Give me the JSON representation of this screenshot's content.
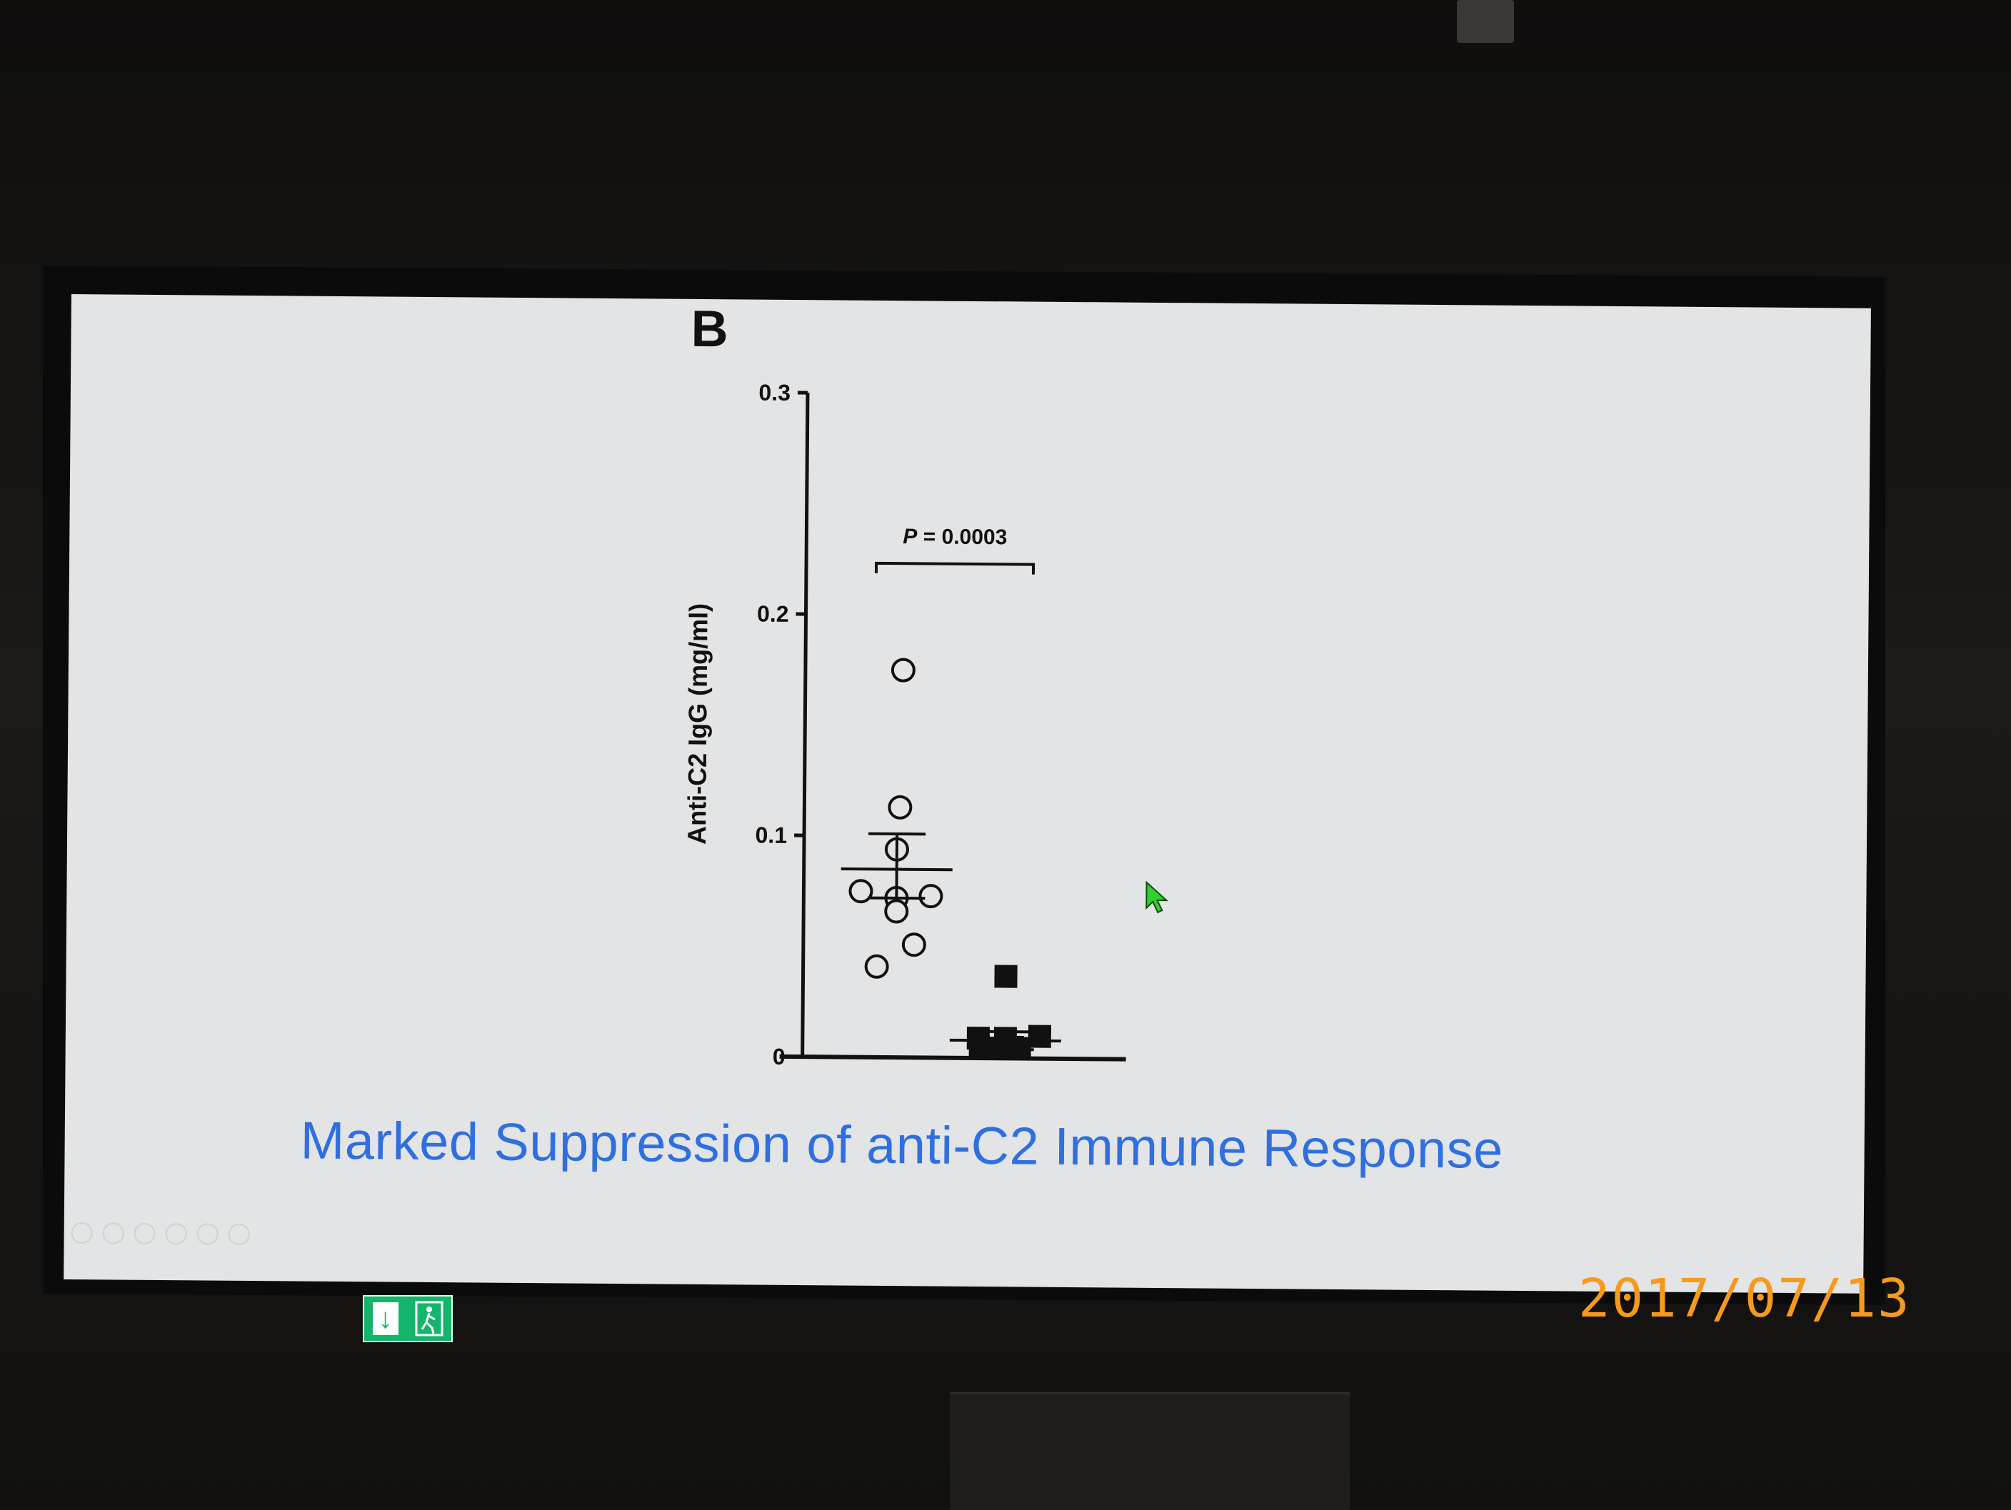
{
  "panel_label": "B",
  "slide_title": "Marked Suppression of anti-C2 Immune Response",
  "date_stamp": "2017/07/13",
  "icons": [
    "exit-arrow-icon",
    "exit-person-icon",
    "mouse-cursor-icon"
  ],
  "colors": {
    "slide_background": "#e3e4e5",
    "title_text": "#2f6fe0",
    "date_stamp": "#f59a1e",
    "exit_sign": "#14b46a",
    "cursor": "#2fd12f"
  },
  "chart_data": {
    "type": "scatter",
    "title": "",
    "ylabel": "Anti-C2 IgG (mg/ml)",
    "xlabel": "",
    "ylim": [
      0,
      0.3
    ],
    "yticks": [
      {
        "value": 0,
        "label": "0"
      },
      {
        "value": 0.1,
        "label": "0.1"
      },
      {
        "value": 0.2,
        "label": "0.2"
      },
      {
        "value": 0.3,
        "label": "0.3"
      }
    ],
    "annotation": {
      "prefix": "P",
      "text": " = 0.0003"
    },
    "groups": [
      {
        "marker": "open-circle",
        "values": [
          0.175,
          0.113,
          0.094,
          0.075,
          0.073,
          0.072,
          0.066,
          0.051,
          0.041
        ],
        "mean": 0.085,
        "sem_upper": 0.101,
        "sem_lower": 0.072
      },
      {
        "marker": "filled-square",
        "values": [
          0.037,
          0.01,
          0.009,
          0.009,
          0.005,
          0.003,
          0.002,
          0.001,
          0.0
        ],
        "mean": 0.008,
        "sem_upper": 0.012,
        "sem_lower": 0.004
      }
    ]
  }
}
